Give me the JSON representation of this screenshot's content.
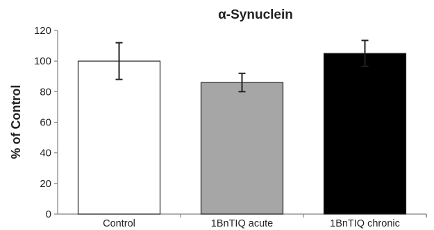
{
  "chart_data": {
    "type": "bar",
    "title": "α-Synuclein",
    "xlabel": "",
    "ylabel": "% of Control",
    "ylim": [
      0,
      120
    ],
    "yticks": [
      0,
      20,
      40,
      60,
      80,
      100,
      120
    ],
    "categories": [
      "Control",
      "1BnTIQ acute",
      "1BnTIQ chronic"
    ],
    "values": [
      100,
      86,
      105
    ],
    "errors": [
      12,
      6,
      8.5
    ],
    "bar_colors": [
      "#ffffff",
      "#a6a6a6",
      "#000000"
    ],
    "grid": false,
    "legend": "none"
  }
}
